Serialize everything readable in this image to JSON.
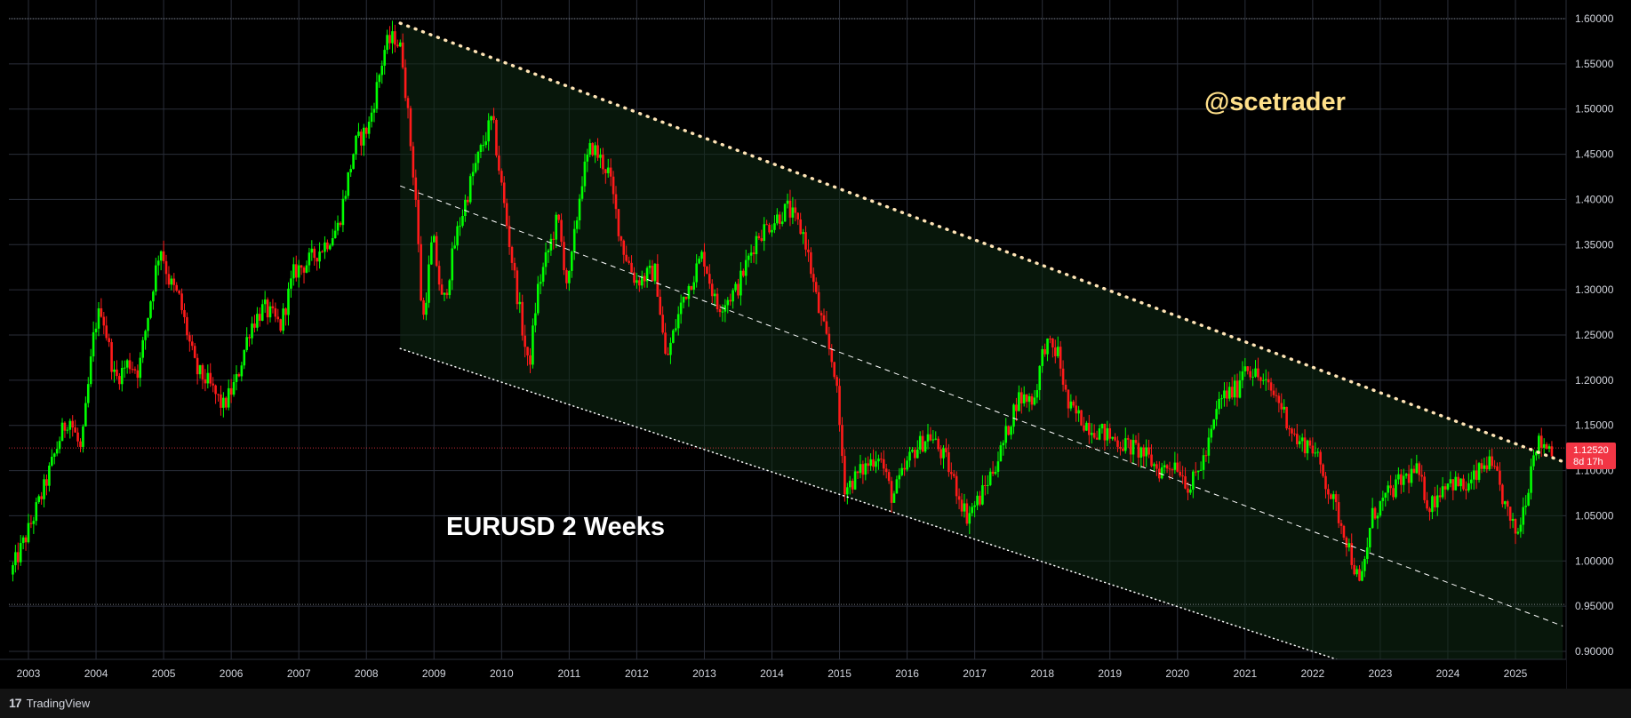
{
  "chart_data": {
    "type": "candlestick",
    "title": "EURUSD 2 Weeks",
    "watermark": "@scetrader",
    "y_ticks": [
      1.6,
      1.55,
      1.5,
      1.45,
      1.4,
      1.35,
      1.3,
      1.25,
      1.2,
      1.15,
      1.1,
      1.05,
      1.0,
      0.95,
      0.9
    ],
    "y_tick_labels": [
      "1.60000",
      "1.55000",
      "1.50000",
      "1.45000",
      "1.40000",
      "1.35000",
      "1.30000",
      "1.25000",
      "1.20000",
      "1.15000",
      "1.10000",
      "1.05000",
      "1.00000",
      "0.95000",
      "0.90000"
    ],
    "ylim": [
      0.88,
      1.61
    ],
    "x_ticks": [
      2003,
      2004,
      2005,
      2006,
      2007,
      2008,
      2009,
      2010,
      2011,
      2012,
      2013,
      2014,
      2015,
      2016,
      2017,
      2018,
      2019,
      2020,
      2021,
      2022,
      2023,
      2024,
      2025
    ],
    "xlim": [
      2002.7,
      2025.75
    ],
    "current_price": 1.1252,
    "current_price_label": "1.12520",
    "countdown_label": "8d 17h",
    "key_levels": [
      1.6,
      1.125,
      0.952
    ],
    "series_points": [
      [
        2002.75,
        0.985
      ],
      [
        2003.0,
        1.03
      ],
      [
        2003.25,
        1.08
      ],
      [
        2003.5,
        1.14
      ],
      [
        2003.62,
        1.16
      ],
      [
        2003.8,
        1.12
      ],
      [
        2004.0,
        1.26
      ],
      [
        2004.1,
        1.28
      ],
      [
        2004.3,
        1.2
      ],
      [
        2004.5,
        1.22
      ],
      [
        2004.65,
        1.21
      ],
      [
        2004.85,
        1.3
      ],
      [
        2004.97,
        1.35
      ],
      [
        2005.1,
        1.31
      ],
      [
        2005.25,
        1.29
      ],
      [
        2005.5,
        1.21
      ],
      [
        2005.65,
        1.2
      ],
      [
        2005.9,
        1.17
      ],
      [
        2006.1,
        1.2
      ],
      [
        2006.3,
        1.26
      ],
      [
        2006.5,
        1.28
      ],
      [
        2006.75,
        1.26
      ],
      [
        2006.95,
        1.32
      ],
      [
        2007.15,
        1.33
      ],
      [
        2007.4,
        1.35
      ],
      [
        2007.6,
        1.37
      ],
      [
        2007.85,
        1.46
      ],
      [
        2008.05,
        1.48
      ],
      [
        2008.3,
        1.57
      ],
      [
        2008.45,
        1.58
      ],
      [
        2008.55,
        1.56
      ],
      [
        2008.75,
        1.4
      ],
      [
        2008.85,
        1.26
      ],
      [
        2009.0,
        1.36
      ],
      [
        2009.15,
        1.28
      ],
      [
        2009.35,
        1.36
      ],
      [
        2009.6,
        1.43
      ],
      [
        2009.88,
        1.49
      ],
      [
        2010.1,
        1.37
      ],
      [
        2010.3,
        1.27
      ],
      [
        2010.42,
        1.21
      ],
      [
        2010.55,
        1.3
      ],
      [
        2010.85,
        1.38
      ],
      [
        2011.0,
        1.3
      ],
      [
        2011.2,
        1.42
      ],
      [
        2011.35,
        1.46
      ],
      [
        2011.6,
        1.43
      ],
      [
        2011.8,
        1.35
      ],
      [
        2012.0,
        1.31
      ],
      [
        2012.3,
        1.32
      ],
      [
        2012.45,
        1.22
      ],
      [
        2012.7,
        1.29
      ],
      [
        2013.0,
        1.34
      ],
      [
        2013.2,
        1.28
      ],
      [
        2013.5,
        1.3
      ],
      [
        2013.8,
        1.36
      ],
      [
        2014.1,
        1.38
      ],
      [
        2014.25,
        1.39
      ],
      [
        2014.5,
        1.36
      ],
      [
        2014.7,
        1.28
      ],
      [
        2014.95,
        1.21
      ],
      [
        2015.1,
        1.08
      ],
      [
        2015.35,
        1.1
      ],
      [
        2015.6,
        1.12
      ],
      [
        2015.8,
        1.07
      ],
      [
        2016.1,
        1.12
      ],
      [
        2016.35,
        1.14
      ],
      [
        2016.6,
        1.11
      ],
      [
        2016.9,
        1.05
      ],
      [
        2017.1,
        1.07
      ],
      [
        2017.4,
        1.12
      ],
      [
        2017.65,
        1.18
      ],
      [
        2017.9,
        1.18
      ],
      [
        2018.05,
        1.24
      ],
      [
        2018.25,
        1.23
      ],
      [
        2018.4,
        1.17
      ],
      [
        2018.7,
        1.15
      ],
      [
        2018.95,
        1.14
      ],
      [
        2019.2,
        1.13
      ],
      [
        2019.5,
        1.12
      ],
      [
        2019.75,
        1.1
      ],
      [
        2020.0,
        1.11
      ],
      [
        2020.2,
        1.08
      ],
      [
        2020.45,
        1.12
      ],
      [
        2020.65,
        1.18
      ],
      [
        2020.9,
        1.19
      ],
      [
        2021.0,
        1.22
      ],
      [
        2021.25,
        1.2
      ],
      [
        2021.5,
        1.18
      ],
      [
        2021.8,
        1.13
      ],
      [
        2022.0,
        1.13
      ],
      [
        2022.25,
        1.08
      ],
      [
        2022.5,
        1.03
      ],
      [
        2022.72,
        0.97
      ],
      [
        2022.9,
        1.05
      ],
      [
        2023.1,
        1.07
      ],
      [
        2023.35,
        1.09
      ],
      [
        2023.55,
        1.1
      ],
      [
        2023.75,
        1.06
      ],
      [
        2024.0,
        1.09
      ],
      [
        2024.3,
        1.08
      ],
      [
        2024.6,
        1.11
      ],
      [
        2024.75,
        1.09
      ],
      [
        2024.95,
        1.04
      ],
      [
        2025.05,
        1.03
      ],
      [
        2025.2,
        1.08
      ],
      [
        2025.3,
        1.13
      ],
      [
        2025.45,
        1.13
      ],
      [
        2025.55,
        1.125
      ]
    ],
    "trendlines": [
      {
        "style": "dotted-heavy",
        "color": "#ffe4b5",
        "from": [
          2008.5,
          1.595
        ],
        "to": [
          2025.7,
          1.11
        ]
      },
      {
        "style": "dashed",
        "color": "#ffffff",
        "from": [
          2008.5,
          1.415
        ],
        "to": [
          2025.7,
          0.928
        ]
      },
      {
        "style": "dotted",
        "color": "#ffffff",
        "from": [
          2008.5,
          1.235
        ],
        "to": [
          2022.4,
          0.89
        ]
      }
    ],
    "channel_fill": {
      "color": "#0f2a14",
      "top": [
        [
          2008.5,
          1.595
        ],
        [
          2025.7,
          1.11
        ]
      ],
      "bottom": [
        [
          2008.5,
          1.235
        ],
        [
          2022.4,
          0.89
        ],
        [
          2025.7,
          0.89
        ]
      ]
    },
    "colors": {
      "up": "#00ff00",
      "down": "#ff1a1a",
      "grid": "#2a2e39",
      "price_label_bg": "#f23645",
      "watermark": "#ffe08a"
    }
  },
  "footer": {
    "brand": "TradingView",
    "brand_mark": "17"
  }
}
